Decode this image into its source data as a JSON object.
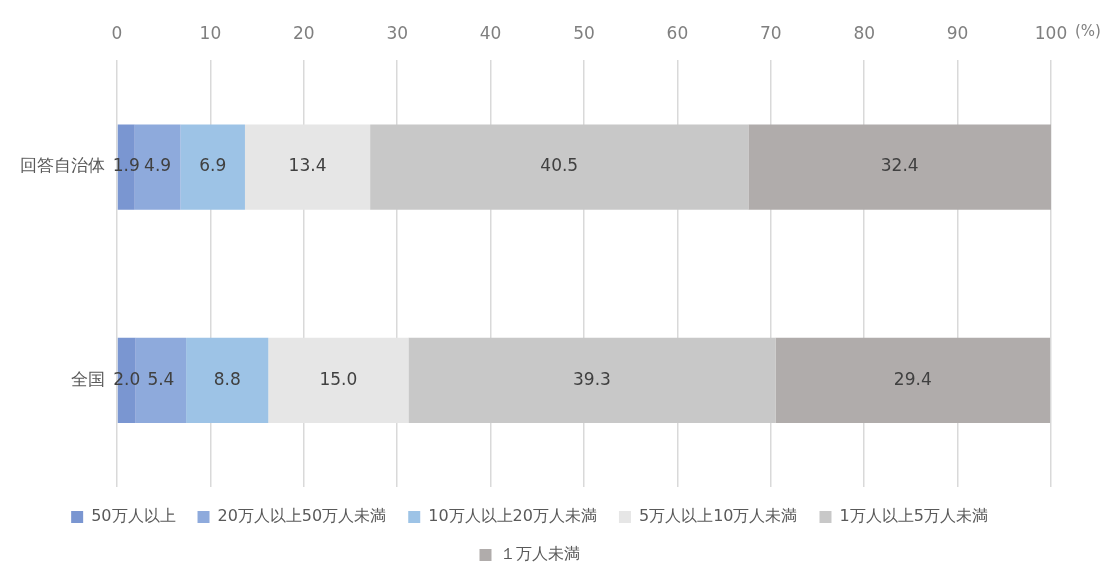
{
  "chart_data": {
    "type": "bar",
    "orientation": "horizontal",
    "stacked": true,
    "xlabel": "(%)",
    "categories": [
      "回答自治体",
      "全国"
    ],
    "series": [
      {
        "name": "50万人以上",
        "color": "#7a96d1",
        "values": [
          1.9,
          2.0
        ],
        "value_labels": [
          "1.9",
          "2.0"
        ]
      },
      {
        "name": "20万人以上50万人未満",
        "color": "#8eaadc",
        "values": [
          4.9,
          5.4
        ],
        "value_labels": [
          "4.9",
          "5.4"
        ]
      },
      {
        "name": "10万人以上20万人未満",
        "color": "#9dc3e6",
        "values": [
          6.9,
          8.8
        ],
        "value_labels": [
          "6.9",
          "8.8"
        ]
      },
      {
        "name": "5万人以上10万人未満",
        "color": "#e6e6e6",
        "values": [
          13.4,
          15.0
        ],
        "value_labels": [
          "13.4",
          "15.0"
        ]
      },
      {
        "name": "1万人以上5万人未満",
        "color": "#c8c8c8",
        "values": [
          40.5,
          39.3
        ],
        "value_labels": [
          "40.5",
          "39.3"
        ]
      },
      {
        "name": "１万人未満",
        "color": "#b0acab",
        "values": [
          32.4,
          29.4
        ],
        "value_labels": [
          "32.4",
          "29.4"
        ]
      }
    ],
    "xlim": [
      0,
      100
    ],
    "xticks": [
      0,
      10,
      20,
      30,
      40,
      50,
      60,
      70,
      80,
      90,
      100
    ],
    "grid": "x",
    "legend": "bottom"
  }
}
